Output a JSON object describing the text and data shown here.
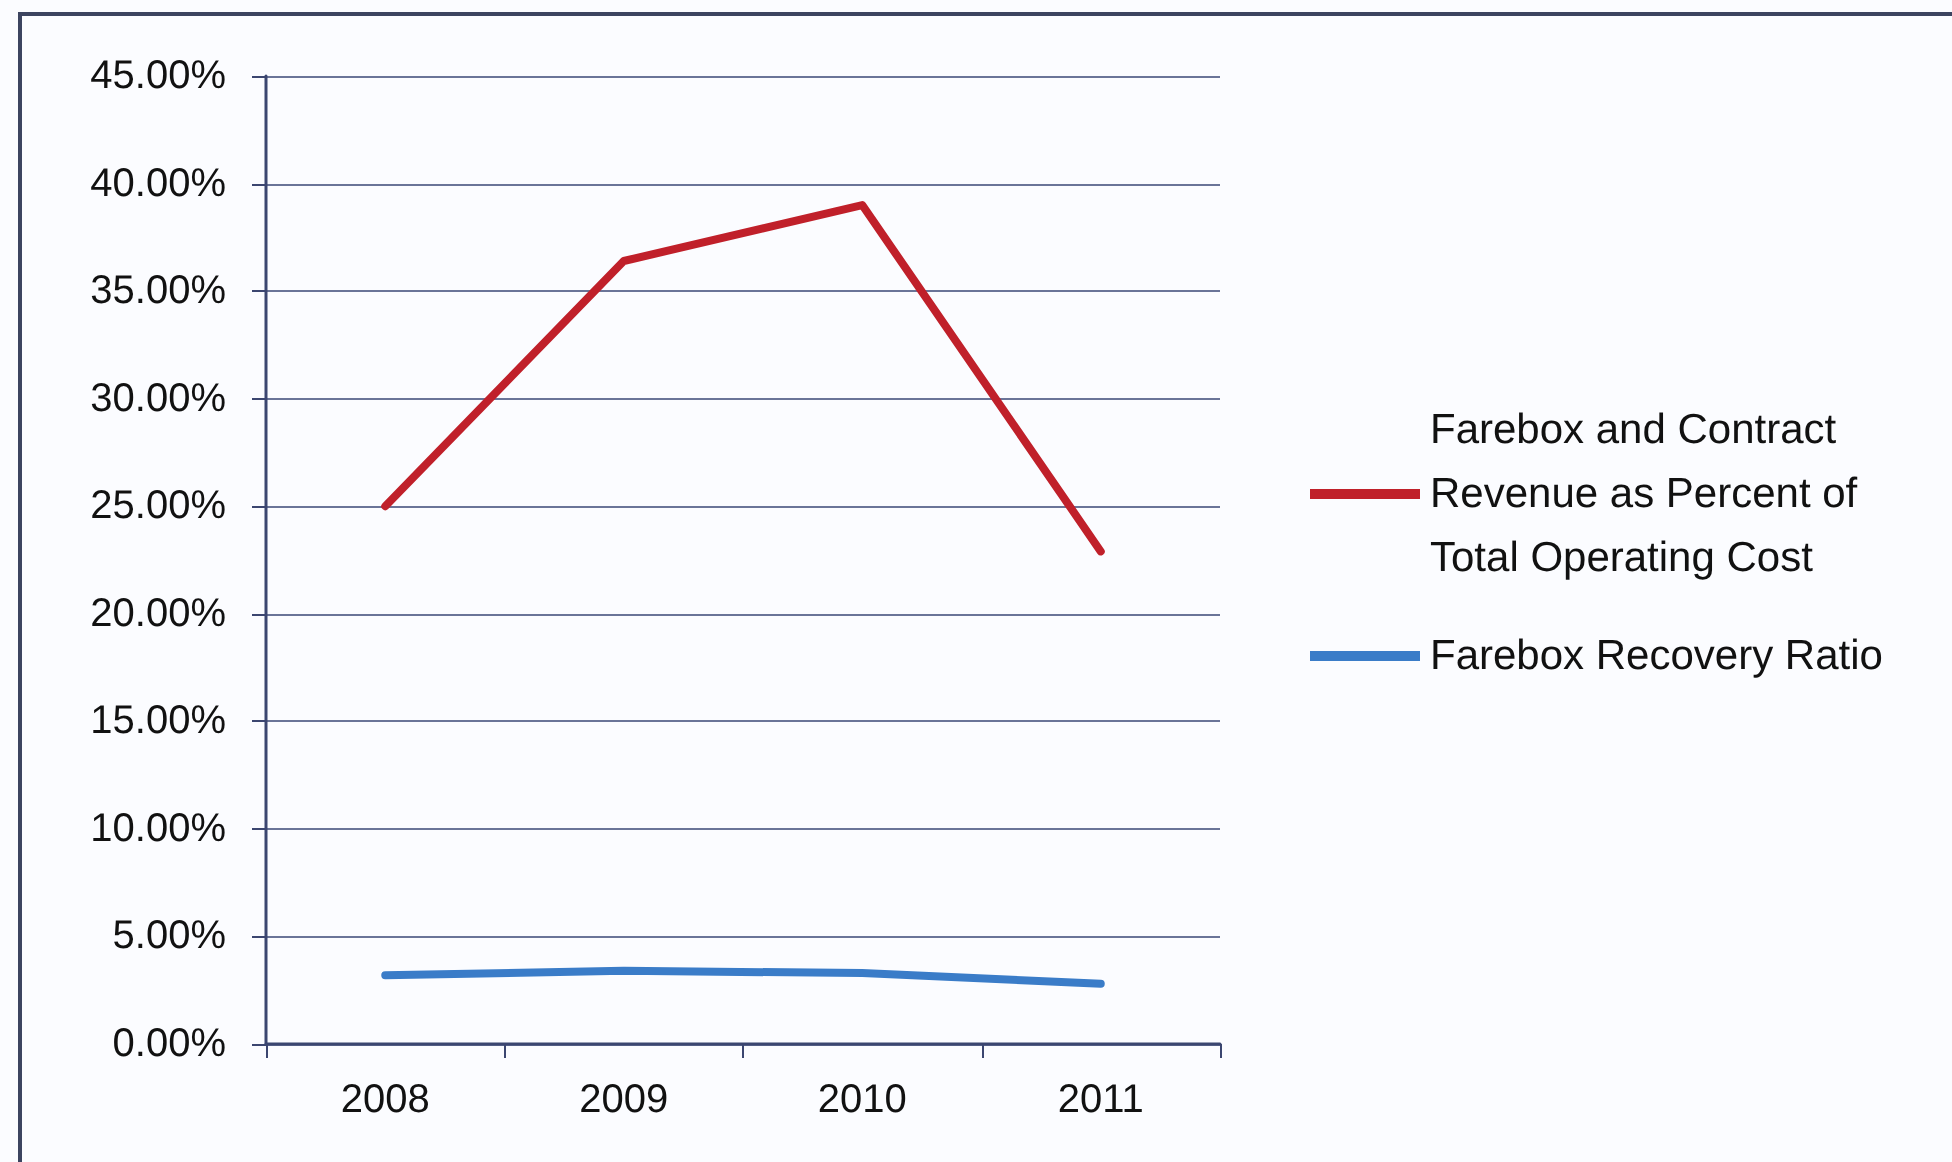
{
  "chart_data": {
    "type": "line",
    "categories": [
      "2008",
      "2009",
      "2010",
      "2011"
    ],
    "series": [
      {
        "name": "Farebox and Contract Revenue as Percent of Total Operating Cost",
        "color": "#c0202a",
        "values": [
          25.0,
          36.4,
          39.0,
          22.9
        ]
      },
      {
        "name": "Farebox Recovery Ratio",
        "color": "#3a7cc8",
        "values": [
          3.2,
          3.4,
          3.3,
          2.8
        ]
      }
    ],
    "ylim": [
      0,
      45
    ],
    "yticks": [
      {
        "value": 0,
        "label": "0.00%"
      },
      {
        "value": 5,
        "label": "5.00%"
      },
      {
        "value": 10,
        "label": "10.00%"
      },
      {
        "value": 15,
        "label": "15.00%"
      },
      {
        "value": 20,
        "label": "20.00%"
      },
      {
        "value": 25,
        "label": "25.00%"
      },
      {
        "value": 30,
        "label": "30.00%"
      },
      {
        "value": 35,
        "label": "35.00%"
      },
      {
        "value": 40,
        "label": "40.00%"
      },
      {
        "value": 45,
        "label": "45.00%"
      }
    ],
    "grid": "y",
    "legend": "right",
    "marker": "none",
    "line_style": "solid"
  }
}
